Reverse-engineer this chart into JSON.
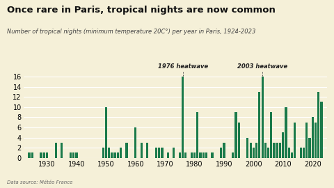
{
  "title": "Once rare in Paris, tropical nights are now common",
  "subtitle": "Number of tropical nights (minimum temperature 20C°) per year in Paris, 1924-2023",
  "datasource": "Data source: Météo France",
  "background_color": "#f5f0d8",
  "bar_color": "#1a7a4a",
  "annotation1_label": "1976 heatwave",
  "annotation1_year": 1976,
  "annotation2_label": "2003 heatwave",
  "annotation2_year": 2003,
  "years": [
    1924,
    1925,
    1926,
    1927,
    1928,
    1929,
    1930,
    1931,
    1932,
    1933,
    1934,
    1935,
    1936,
    1937,
    1938,
    1939,
    1940,
    1941,
    1942,
    1943,
    1944,
    1945,
    1946,
    1947,
    1948,
    1949,
    1950,
    1951,
    1952,
    1953,
    1954,
    1955,
    1956,
    1957,
    1958,
    1959,
    1960,
    1961,
    1962,
    1963,
    1964,
    1965,
    1966,
    1967,
    1968,
    1969,
    1970,
    1971,
    1972,
    1973,
    1974,
    1975,
    1976,
    1977,
    1978,
    1979,
    1980,
    1981,
    1982,
    1983,
    1984,
    1985,
    1986,
    1987,
    1988,
    1989,
    1990,
    1991,
    1992,
    1993,
    1994,
    1995,
    1996,
    1997,
    1998,
    1999,
    2000,
    2001,
    2002,
    2003,
    2004,
    2005,
    2006,
    2007,
    2008,
    2009,
    2010,
    2011,
    2012,
    2013,
    2014,
    2015,
    2016,
    2017,
    2018,
    2019,
    2020,
    2021,
    2022,
    2023
  ],
  "values": [
    1,
    1,
    0,
    0,
    1,
    1,
    1,
    0,
    0,
    3,
    0,
    3,
    0,
    0,
    1,
    1,
    1,
    0,
    0,
    0,
    0,
    0,
    0,
    0,
    0,
    2,
    10,
    2,
    1,
    1,
    1,
    2,
    0,
    3,
    0,
    0,
    6,
    0,
    3,
    0,
    3,
    0,
    0,
    2,
    2,
    2,
    0,
    1,
    0,
    2,
    0,
    1,
    16,
    1,
    0,
    1,
    1,
    9,
    1,
    1,
    1,
    0,
    1,
    0,
    0,
    2,
    3,
    0,
    0,
    1,
    9,
    7,
    0,
    0,
    4,
    3,
    2,
    3,
    13,
    16,
    3,
    2,
    9,
    3,
    3,
    3,
    5,
    10,
    2,
    1,
    7,
    0,
    2,
    2,
    7,
    4,
    8,
    7,
    13,
    11
  ],
  "ylim": [
    0,
    17
  ],
  "yticks": [
    0,
    2,
    4,
    6,
    8,
    10,
    12,
    14,
    16
  ],
  "xticks": [
    1930,
    1940,
    1950,
    1960,
    1970,
    1980,
    1990,
    2000,
    2010,
    2020
  ]
}
